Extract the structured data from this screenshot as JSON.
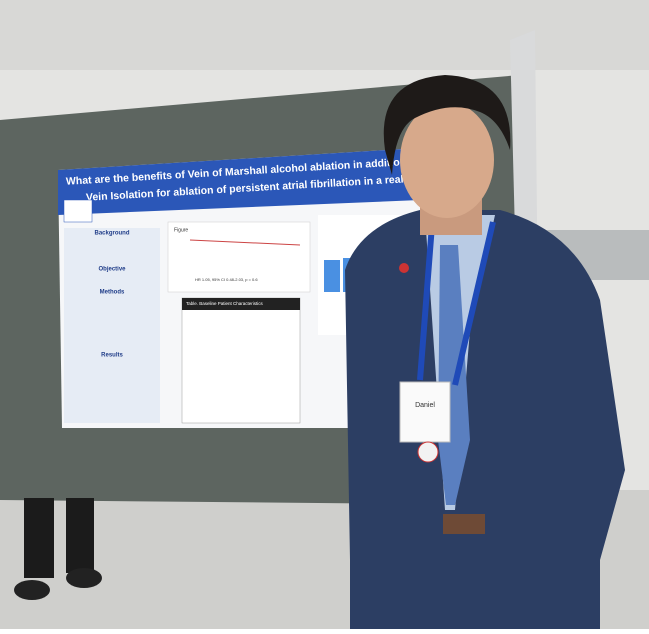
{
  "poster": {
    "title_lines": [
      "What are the benefits of Vein of Marshall alcohol ablation in addition to",
      "Vein Isolation for ablation of persistent atrial fibrillation in a real-world"
    ],
    "sections": [
      "Background",
      "Objective",
      "Methods",
      "Results"
    ],
    "figure_label": "Figure",
    "table_title": "Table. Baseline Patient Characteristics",
    "hr_text": "HR 1.05, 95% CI 0.48-2.03, p = 0.6"
  },
  "badge": {
    "name": "Daniel"
  }
}
